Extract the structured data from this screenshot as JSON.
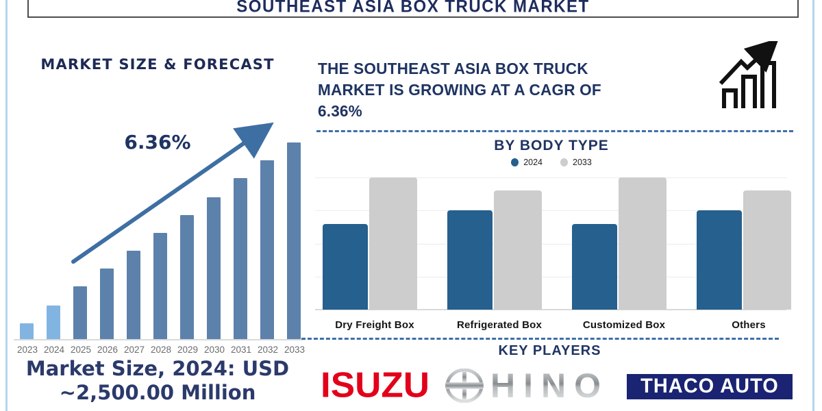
{
  "title_bar": {
    "title": "SOUTHEAST ASIA BOX TRUCK MARKET"
  },
  "left_panel": {
    "heading": "MARKET SIZE & FORECAST",
    "growth_annotation": "6.36%",
    "market_size_line1": "Market Size, 2024: USD",
    "market_size_line2": "~2,500.00 Million"
  },
  "right_panel": {
    "cagr_line1": "THE SOUTHEAST ASIA BOX TRUCK",
    "cagr_line2": "MARKET IS GROWING AT A CAGR OF",
    "cagr_line3": "6.36%",
    "body_type_heading": "BY BODY TYPE",
    "key_players_heading": "KEY PLAYERS",
    "key_players": {
      "players": [
        "ISUZU",
        "HINO",
        "THACO AUTO"
      ]
    }
  },
  "icons": {
    "growth_chart": "growth-bars-arrow-icon",
    "hino_emblem": "hino-ellipse-h-emblem",
    "trend_arrow": "upward-trend-arrow"
  },
  "colors": {
    "navy_text": "#1F3462",
    "dashed_line": "#3F6FA6",
    "frame_blue": "#B4D4EE",
    "isuzu_red": "#E2001A",
    "thaco_navy": "#1A2472",
    "arrow_blue": "#3E6FA3"
  },
  "chart_data": [
    {
      "type": "bar",
      "title": "MARKET SIZE & FORECAST",
      "categories": [
        "2023",
        "2024",
        "2025",
        "2026",
        "2027",
        "2028",
        "2029",
        "2030",
        "2031",
        "2032",
        "2033"
      ],
      "values": [
        8,
        17,
        27,
        36,
        45,
        54,
        63,
        72,
        82,
        91,
        100
      ],
      "unit": "relative market size index (no y-axis shown; 2033 bar = 100)",
      "annotation": "6.36%",
      "colors": {
        "historical": "#82B4E2",
        "forecast": "#5C81AB"
      },
      "historical_categories": [
        "2023",
        "2024"
      ],
      "grid": false,
      "legend": false
    },
    {
      "type": "bar",
      "title": "BY BODY TYPE",
      "categories": [
        "Dry Freight Box",
        "Refrigerated Box",
        "Customized Box",
        "Others"
      ],
      "series": [
        {
          "name": "2024",
          "color": "#25608E",
          "values": [
            65,
            75,
            65,
            75
          ]
        },
        {
          "name": "2033",
          "color": "#CDCDCD",
          "values": [
            100,
            90,
            100,
            90
          ]
        }
      ],
      "unit": "relative index (no y-axis shown; tallest bar = 100)",
      "grid": true,
      "legend_position": "top"
    }
  ]
}
